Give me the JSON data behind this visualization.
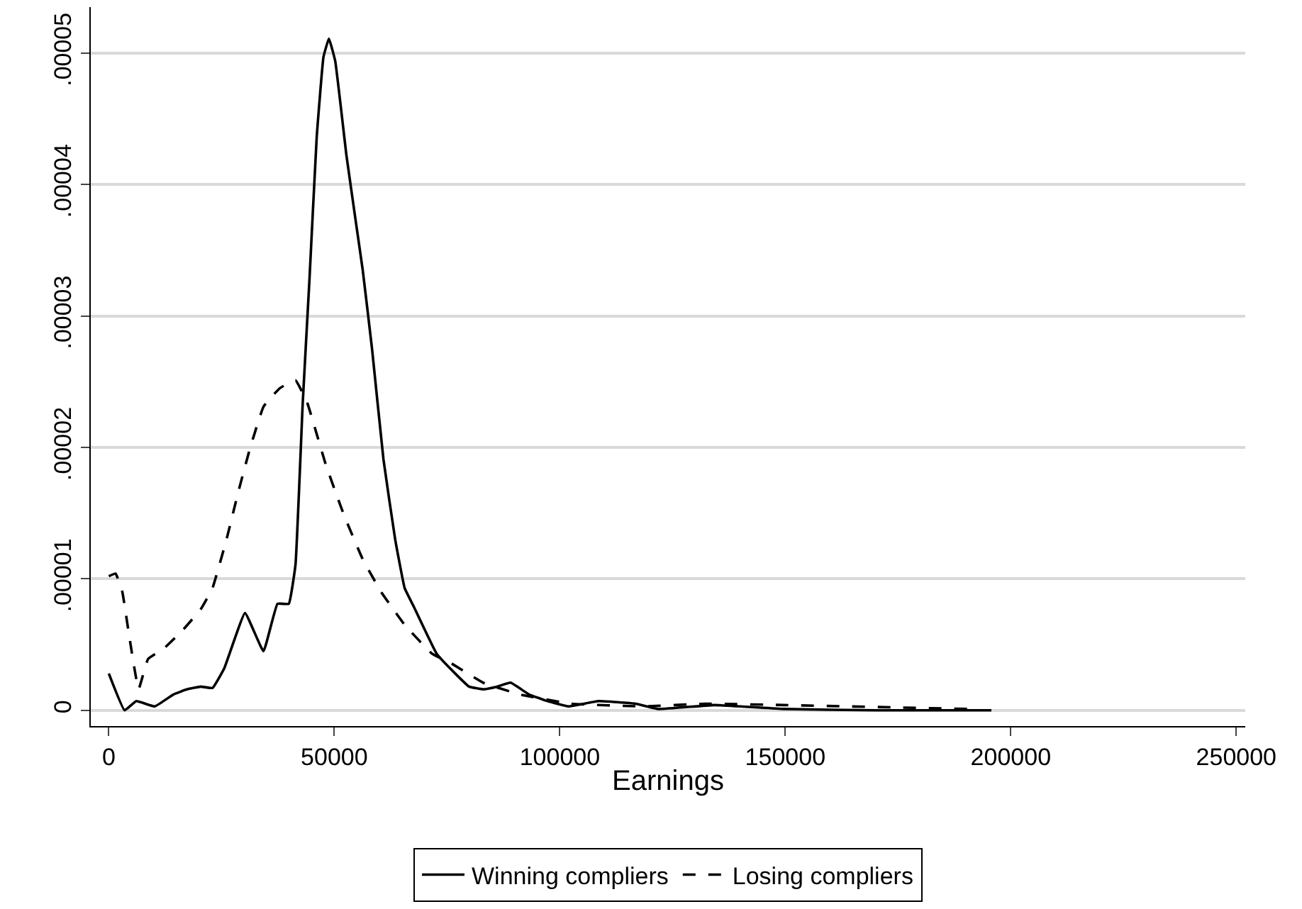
{
  "chart_data": {
    "type": "line",
    "xlabel": "Earnings",
    "xlim": [
      -4000,
      252000
    ],
    "xticks": [
      0,
      50000,
      100000,
      150000,
      200000,
      250000
    ],
    "ylim": [
      -1.2e-06,
      5.35e-05
    ],
    "yticks": [
      {
        "value": 0,
        "label": "0"
      },
      {
        "value": 1e-05,
        "label": ".00001"
      },
      {
        "value": 2e-05,
        "label": ".00002"
      },
      {
        "value": 3e-05,
        "label": ".00003"
      },
      {
        "value": 4e-05,
        "label": ".00004"
      },
      {
        "value": 5e-05,
        "label": ".00005"
      }
    ],
    "grid": "y",
    "legend": "bottom",
    "marker": "none",
    "series": [
      {
        "name": "Winning compliers",
        "color": "#000000",
        "line_style": "solid",
        "x": [
          0,
          3500,
          6100,
          10200,
          14300,
          17400,
          20400,
          23000,
          25600,
          30200,
          34300,
          37400,
          39900,
          41400,
          43000,
          44500,
          46100,
          47600,
          48800,
          50200,
          52700,
          54800,
          56300,
          58400,
          60900,
          63500,
          65600,
          67600,
          72700,
          76800,
          79900,
          83000,
          86100,
          89100,
          93200,
          97300,
          101900,
          108600,
          116800,
          121900,
          134200,
          149600,
          170100,
          195700
        ],
        "values": [
          2.8e-06,
          0.0,
          7e-07,
          3e-07,
          1.2e-06,
          1.6e-06,
          1.8e-06,
          1.7e-06,
          3.2e-06,
          7.4e-06,
          4.5e-06,
          8.1e-06,
          8.1e-06,
          1.11e-05,
          2.34e-05,
          3.28e-05,
          4.36e-05,
          4.97e-05,
          5.11e-05,
          4.94e-05,
          4.22e-05,
          3.71e-05,
          3.35e-05,
          2.74e-05,
          1.91e-05,
          1.3e-05,
          9.3e-06,
          7.9e-06,
          4.3e-06,
          2.8e-06,
          1.8e-06,
          1.6e-06,
          1.8e-06,
          2.1e-06,
          1.2e-06,
          7e-07,
          3e-07,
          7e-07,
          5e-07,
          1e-07,
          4e-07,
          1e-07,
          0.0,
          0.0
        ]
      },
      {
        "name": "Losing compliers",
        "color": "#000000",
        "line_style": "dashed",
        "x": [
          0,
          1500,
          3000,
          4500,
          6600,
          8700,
          12200,
          16400,
          20400,
          23000,
          26100,
          28700,
          31200,
          34300,
          37900,
          41400,
          44000,
          48100,
          52200,
          56300,
          60400,
          65600,
          71700,
          75800,
          83000,
          91200,
          102500,
          118800,
          132200,
          149600,
          190600
        ],
        "values": [
          1.02e-05,
          1.04e-05,
          9e-06,
          5.7e-06,
          1.6e-06,
          3.9e-06,
          4.7e-06,
          6.1e-06,
          7.7e-06,
          9.3e-06,
          1.3e-05,
          1.66e-05,
          1.98e-05,
          2.31e-05,
          2.45e-05,
          2.51e-05,
          2.34e-05,
          1.87e-05,
          1.48e-05,
          1.15e-05,
          9e-06,
          6.5e-06,
          4.3e-06,
          3.6e-06,
          2.1e-06,
          1.2e-06,
          5e-07,
          3e-07,
          5e-07,
          4e-07,
          1e-07
        ]
      }
    ]
  }
}
